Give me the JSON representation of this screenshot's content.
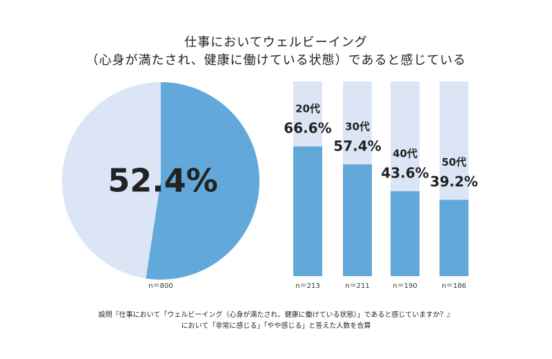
{
  "title": [
    "仕事においてウェルビーイング",
    "（心身が満たされ、健康に働けている状態）であると感じている"
  ],
  "chart_data": [
    {
      "type": "pie",
      "values": [
        52.4
      ],
      "value_labels": [
        "52.4%"
      ],
      "color": "#62a8da",
      "background_color": "#dce5f5",
      "sample_label": "n＝800"
    },
    {
      "type": "bar",
      "categories": [
        "20代",
        "30代",
        "40代",
        "50代"
      ],
      "values": [
        66.6,
        57.4,
        43.6,
        39.2
      ],
      "value_labels": [
        "66.6%",
        "57.4%",
        "43.6%",
        "39.2%"
      ],
      "sample_labels": [
        "n＝213",
        "n＝211",
        "n＝190",
        "n＝186"
      ],
      "ylim": [
        0,
        100
      ],
      "color": "#62a8da",
      "background_color": "#dce5f5"
    }
  ],
  "note": [
    "設問『仕事において「ウェルビーイング（心身が満たされ、健康に働けている状態）」であると感じていますか？』",
    "において「非常に感じる」「やや感じる」と答えた人数を合算"
  ]
}
